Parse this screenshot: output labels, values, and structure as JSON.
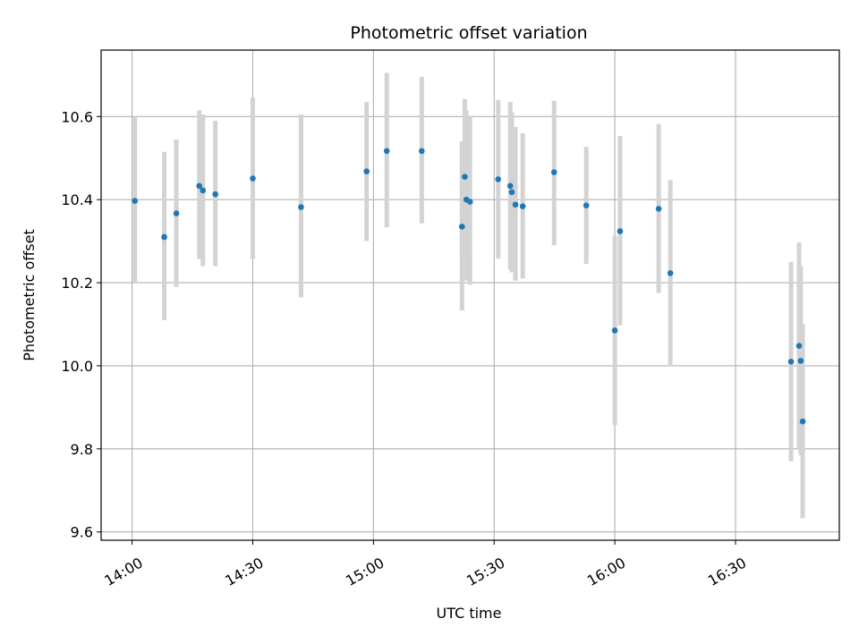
{
  "chart_data": {
    "type": "scatter",
    "title": "Photometric offset variation",
    "xlabel": "UTC time",
    "ylabel": "Photometric offset",
    "x_tick_labels": [
      "14:00",
      "14:30",
      "15:00",
      "15:30",
      "16:00",
      "16:30"
    ],
    "y_tick_labels": [
      "9.6",
      "9.8",
      "10.0",
      "10.2",
      "10.4",
      "10.6"
    ],
    "x_ticks_minutes": [
      840,
      870,
      900,
      930,
      960,
      990
    ],
    "y_ticks": [
      9.6,
      9.8,
      10.0,
      10.2,
      10.4,
      10.6
    ],
    "xlim_minutes": [
      832.3,
      1015.8
    ],
    "ylim": [
      9.58,
      10.76
    ],
    "grid": true,
    "point_color": "#1f77b4",
    "errorbar_color": "#d3d3d3",
    "points": [
      {
        "x": "14:00.7",
        "y": 10.397,
        "low": 10.2,
        "high": 10.6
      },
      {
        "x": "14:08.0",
        "y": 10.31,
        "low": 10.11,
        "high": 10.515
      },
      {
        "x": "14:11.0",
        "y": 10.367,
        "low": 10.19,
        "high": 10.545
      },
      {
        "x": "14:16.7",
        "y": 10.433,
        "low": 10.257,
        "high": 10.615
      },
      {
        "x": "14:17.6",
        "y": 10.422,
        "low": 10.24,
        "high": 10.605
      },
      {
        "x": "14:20.7",
        "y": 10.413,
        "low": 10.24,
        "high": 10.59
      },
      {
        "x": "14:30.0",
        "y": 10.451,
        "low": 10.258,
        "high": 10.645
      },
      {
        "x": "14:42.0",
        "y": 10.382,
        "low": 10.165,
        "high": 10.605
      },
      {
        "x": "14:58.3",
        "y": 10.468,
        "low": 10.3,
        "high": 10.635
      },
      {
        "x": "15:03.3",
        "y": 10.517,
        "low": 10.333,
        "high": 10.705
      },
      {
        "x": "15:12.0",
        "y": 10.517,
        "low": 10.343,
        "high": 10.695
      },
      {
        "x": "15:22.0",
        "y": 10.335,
        "low": 10.133,
        "high": 10.54
      },
      {
        "x": "15:22.7",
        "y": 10.455,
        "low": 10.27,
        "high": 10.642
      },
      {
        "x": "15:23.1",
        "y": 10.4,
        "low": 10.205,
        "high": 10.615
      },
      {
        "x": "15:24.0",
        "y": 10.395,
        "low": 10.195,
        "high": 10.6
      },
      {
        "x": "15:31.0",
        "y": 10.449,
        "low": 10.258,
        "high": 10.64
      },
      {
        "x": "15:34.0",
        "y": 10.433,
        "low": 10.232,
        "high": 10.635
      },
      {
        "x": "15:34.4",
        "y": 10.418,
        "low": 10.225,
        "high": 10.61
      },
      {
        "x": "15:35.3",
        "y": 10.388,
        "low": 10.205,
        "high": 10.575
      },
      {
        "x": "15:37.1",
        "y": 10.384,
        "low": 10.21,
        "high": 10.56
      },
      {
        "x": "15:44.9",
        "y": 10.466,
        "low": 10.29,
        "high": 10.638
      },
      {
        "x": "15:52.9",
        "y": 10.386,
        "low": 10.245,
        "high": 10.527
      },
      {
        "x": "16:00.0",
        "y": 10.085,
        "low": 9.857,
        "high": 10.313
      },
      {
        "x": "16:01.3",
        "y": 10.324,
        "low": 10.097,
        "high": 10.553
      },
      {
        "x": "16:10.9",
        "y": 10.378,
        "low": 10.175,
        "high": 10.582
      },
      {
        "x": "16:13.8",
        "y": 10.223,
        "low": 10.0,
        "high": 10.447
      },
      {
        "x": "16:43.8",
        "y": 10.01,
        "low": 9.77,
        "high": 10.25
      },
      {
        "x": "16:45.8",
        "y": 10.048,
        "low": 9.8,
        "high": 10.297
      },
      {
        "x": "16:46.2",
        "y": 10.012,
        "low": 9.785,
        "high": 10.24
      },
      {
        "x": "16:46.7",
        "y": 9.866,
        "low": 9.633,
        "high": 10.1
      }
    ]
  }
}
